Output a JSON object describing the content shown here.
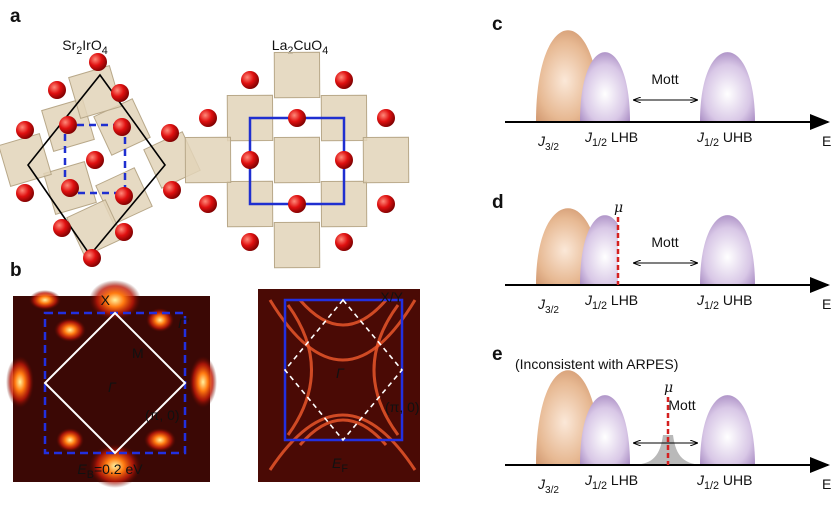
{
  "panel_a": {
    "label": "a",
    "formulas": [
      [
        {
          "text": "Sr"
        },
        {
          "text": "2",
          "style": "sub"
        },
        {
          "text": "IrO"
        },
        {
          "text": "4",
          "style": "sub"
        }
      ],
      [
        {
          "text": "La"
        },
        {
          "text": "2",
          "style": "sub"
        },
        {
          "text": "CuO"
        },
        {
          "text": "4",
          "style": "sub"
        }
      ]
    ]
  },
  "panel_b": {
    "label": "b",
    "left": {
      "x": "X",
      "gamma_prime": "Γ'",
      "m": "M",
      "gamma": "Γ",
      "point": "(π, 0)",
      "energy": [
        {
          "text": "E",
          "style": "italic"
        },
        {
          "text": "B",
          "style": "sub"
        },
        {
          "text": "=0.2 eV"
        }
      ]
    },
    "right": {
      "xy": "X/Y",
      "gamma": "Γ",
      "point": "(π, 0)",
      "energy": [
        {
          "text": "E",
          "style": "italic"
        },
        {
          "text": "F",
          "style": "sub"
        }
      ]
    }
  },
  "panels": [
    {
      "label": "c",
      "mott": "Mott",
      "energy_axis": "E",
      "bands": [
        [
          {
            "text": "J",
            "style": "italic"
          },
          {
            "text": "3/2",
            "style": "sub"
          }
        ],
        [
          {
            "text": "J",
            "style": "italic"
          },
          {
            "text": "1/2",
            "style": "sub"
          },
          {
            "text": " LHB"
          }
        ],
        [
          {
            "text": "J",
            "style": "italic"
          },
          {
            "text": "1/2",
            "style": "sub"
          },
          {
            "text": " UHB"
          }
        ]
      ]
    },
    {
      "label": "d",
      "mott": "Mott",
      "mu": "μ",
      "energy_axis": "E",
      "bands": [
        [
          {
            "text": "J",
            "style": "italic"
          },
          {
            "text": "3/2",
            "style": "sub"
          }
        ],
        [
          {
            "text": "J",
            "style": "italic"
          },
          {
            "text": "1/2",
            "style": "sub"
          },
          {
            "text": " LHB"
          }
        ],
        [
          {
            "text": "J",
            "style": "italic"
          },
          {
            "text": "1/2",
            "style": "sub"
          },
          {
            "text": " UHB"
          }
        ]
      ]
    },
    {
      "label": "e",
      "caption": "(Inconsistent with ARPES)",
      "mott": "Mott",
      "mu": "μ",
      "energy_axis": "E",
      "bands": [
        [
          {
            "text": "J",
            "style": "italic"
          },
          {
            "text": "3/2",
            "style": "sub"
          }
        ],
        [
          {
            "text": "J",
            "style": "italic"
          },
          {
            "text": "1/2",
            "style": "sub"
          },
          {
            "text": " LHB"
          }
        ],
        [
          {
            "text": "J",
            "style": "italic"
          },
          {
            "text": "1/2",
            "style": "sub"
          },
          {
            "text": " UHB"
          }
        ]
      ]
    }
  ]
}
